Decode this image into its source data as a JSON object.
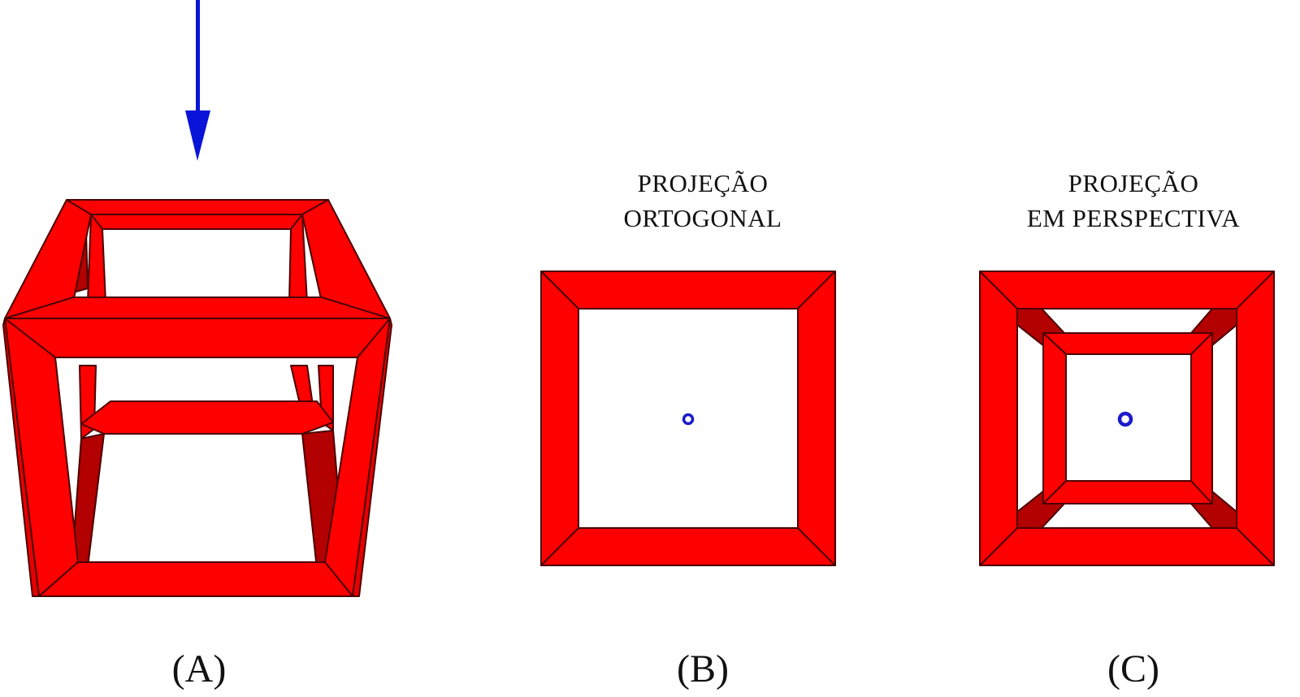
{
  "panels": [
    {
      "id": "A",
      "label": "(A)",
      "figure": "tesseract-3d-view",
      "title_lines": []
    },
    {
      "id": "B",
      "label": "(B)",
      "figure": "orthogonal-projection",
      "title_lines": [
        "PROJEÇÃO",
        "ORTOGONAL"
      ]
    },
    {
      "id": "C",
      "label": "(C)",
      "figure": "perspective-projection",
      "title_lines": [
        "PROJEÇÃO",
        "EM PERSPECTIVA"
      ]
    }
  ],
  "colors": {
    "frame_red": "#ff0000",
    "frame_dark_red": "#b30000",
    "edge": "#4a0000",
    "arrow_blue": "#0a14d8",
    "viewpoint_blue": "#1a1acc",
    "background": "#ffffff",
    "text": "#111111"
  },
  "icons": {
    "view_direction": "arrow-down-icon",
    "viewpoint": "viewpoint-dot-icon"
  }
}
